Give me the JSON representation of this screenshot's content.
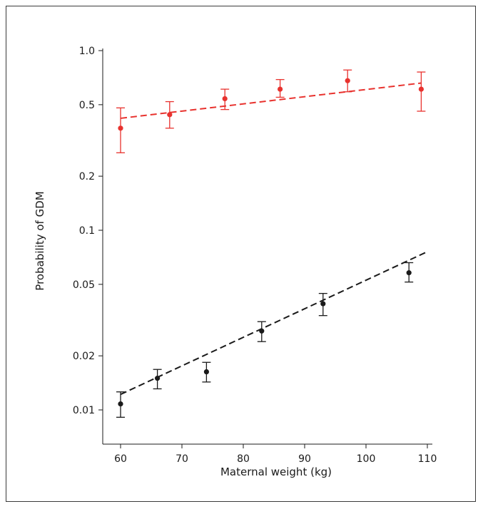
{
  "chart_data": {
    "type": "scatter",
    "title": "",
    "xlabel": "Maternal weight (kg)",
    "ylabel": "Probability of GDM",
    "x_scale": "linear",
    "y_scale": "log",
    "xlim": [
      59,
      111
    ],
    "ylim": [
      0.009,
      1.0
    ],
    "x_ticks": [
      60,
      70,
      80,
      90,
      100,
      110
    ],
    "x_tick_labels": [
      "60",
      "70",
      "80",
      "90",
      "100",
      "110"
    ],
    "y_ticks": [
      0.01,
      0.02,
      0.05,
      0.1,
      0.2,
      0.5,
      1.0
    ],
    "y_tick_labels": [
      "0.01",
      "0.02",
      "0.05",
      "0.1",
      "0.2",
      "0.5",
      "1.0"
    ],
    "grid": false,
    "legend": "none",
    "series": [
      {
        "color": "#e8322e",
        "points": [
          {
            "x": 60,
            "y": 0.37,
            "lo": 0.27,
            "hi": 0.48
          },
          {
            "x": 68,
            "y": 0.44,
            "lo": 0.37,
            "hi": 0.52
          },
          {
            "x": 77,
            "y": 0.54,
            "lo": 0.47,
            "hi": 0.61
          },
          {
            "x": 86,
            "y": 0.61,
            "lo": 0.55,
            "hi": 0.69
          },
          {
            "x": 97,
            "y": 0.68,
            "lo": 0.59,
            "hi": 0.78
          },
          {
            "x": 109,
            "y": 0.61,
            "lo": 0.46,
            "hi": 0.76
          }
        ],
        "fit": {
          "x": [
            60,
            109
          ],
          "y": [
            0.42,
            0.66
          ],
          "style": "dashed"
        }
      },
      {
        "color": "#1a1a1a",
        "points": [
          {
            "x": 60,
            "y": 0.0108,
            "lo": 0.0091,
            "hi": 0.0126
          },
          {
            "x": 66,
            "y": 0.015,
            "lo": 0.0131,
            "hi": 0.0168
          },
          {
            "x": 74,
            "y": 0.0163,
            "lo": 0.0143,
            "hi": 0.0184
          },
          {
            "x": 83,
            "y": 0.0275,
            "lo": 0.024,
            "hi": 0.031
          },
          {
            "x": 93,
            "y": 0.039,
            "lo": 0.0335,
            "hi": 0.0445
          },
          {
            "x": 107,
            "y": 0.058,
            "lo": 0.0515,
            "hi": 0.066
          }
        ],
        "fit": {
          "x": [
            60,
            110
          ],
          "y": [
            0.0122,
            0.076
          ],
          "style": "dashed"
        }
      }
    ]
  }
}
